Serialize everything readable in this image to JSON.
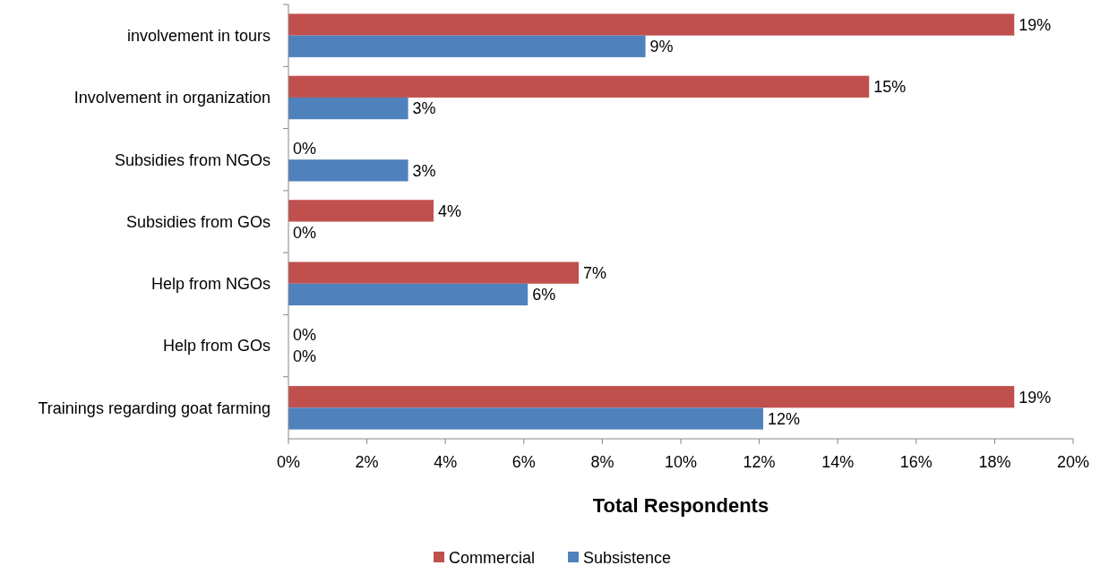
{
  "chart_data": {
    "type": "bar",
    "orientation": "horizontal",
    "xlabel": "Total Respondents",
    "categories": [
      "involvement in tours",
      "Involvement in organization",
      "Subsidies from NGOs",
      "Subsidies from GOs",
      "Help  from NGOs",
      "Help  from GOs",
      "Trainings regarding goat farming"
    ],
    "series": [
      {
        "name": "Commercial",
        "color": "#c0504d",
        "values": [
          18.5,
          14.8,
          0,
          3.7,
          7.4,
          0,
          18.5
        ],
        "value_labels": [
          "19%",
          "15%",
          "0%",
          "4%",
          "7%",
          "0%",
          "19%"
        ]
      },
      {
        "name": "Subsistence",
        "color": "#4f81bd",
        "values": [
          9.1,
          3.05,
          3.05,
          0,
          6.1,
          0,
          12.1
        ],
        "value_labels": [
          "9%",
          "3%",
          "3%",
          "0%",
          "6%",
          "0%",
          "12%"
        ]
      }
    ],
    "xlim": [
      0,
      20
    ],
    "xticks": [
      {
        "value": 0,
        "label": "0%"
      },
      {
        "value": 2,
        "label": "2%"
      },
      {
        "value": 4,
        "label": "4%"
      },
      {
        "value": 6,
        "label": "6%"
      },
      {
        "value": 8,
        "label": "8%"
      },
      {
        "value": 10,
        "label": "10%"
      },
      {
        "value": 12,
        "label": "12%"
      },
      {
        "value": 14,
        "label": "14%"
      },
      {
        "value": 16,
        "label": "16%"
      },
      {
        "value": 18,
        "label": "18%"
      },
      {
        "value": 20,
        "label": "20%"
      }
    ],
    "grid": false,
    "legend": "bottom"
  }
}
